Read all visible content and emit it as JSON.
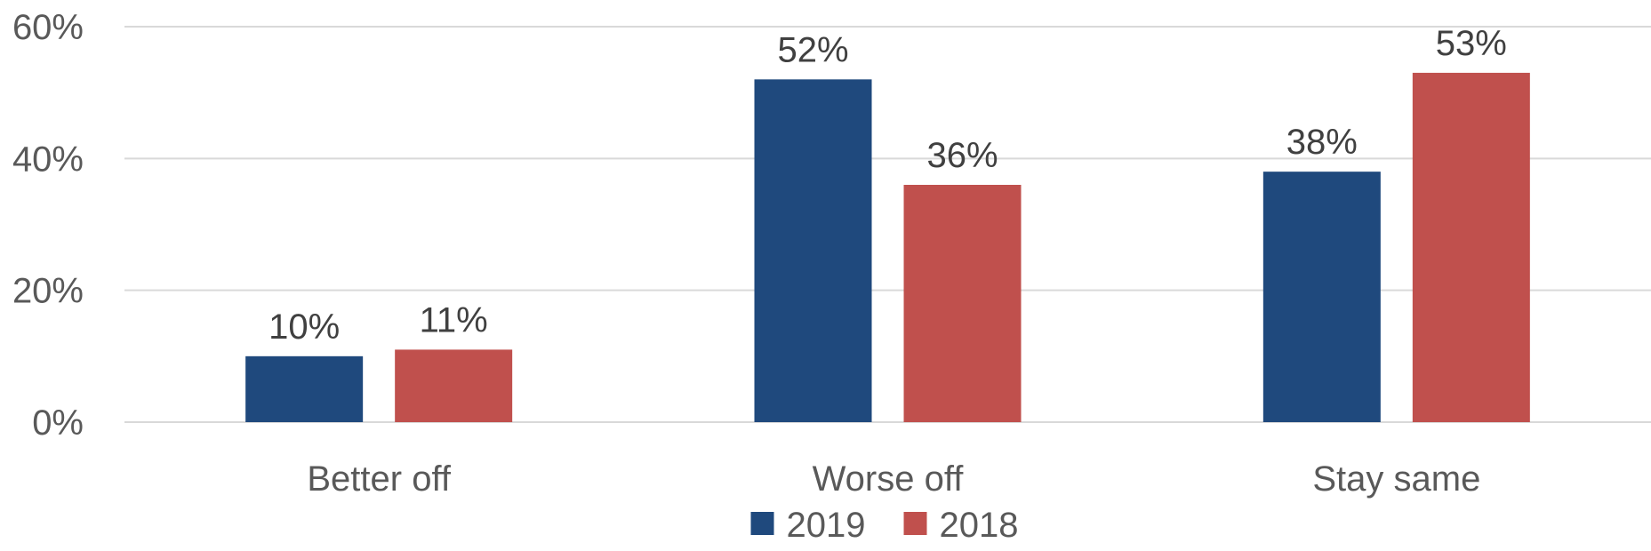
{
  "chart_data": {
    "type": "bar",
    "categories": [
      "Better off",
      "Worse off",
      "Stay same"
    ],
    "series": [
      {
        "name": "2019",
        "color": "#1f497d",
        "values": [
          10,
          52,
          38
        ],
        "labels": [
          "10%",
          "52%",
          "38%"
        ]
      },
      {
        "name": "2018",
        "color": "#c0504d",
        "values": [
          11,
          36,
          53
        ],
        "labels": [
          "11%",
          "36%",
          "53%"
        ]
      }
    ],
    "yticks": [
      {
        "value": 0,
        "label": "0%"
      },
      {
        "value": 20,
        "label": "20%"
      },
      {
        "value": 40,
        "label": "40%"
      },
      {
        "value": 60,
        "label": "60%"
      }
    ],
    "ylim": [
      0,
      60
    ],
    "grid": true,
    "legend_position": "bottom-center",
    "title": "",
    "xlabel": "",
    "ylabel": ""
  }
}
